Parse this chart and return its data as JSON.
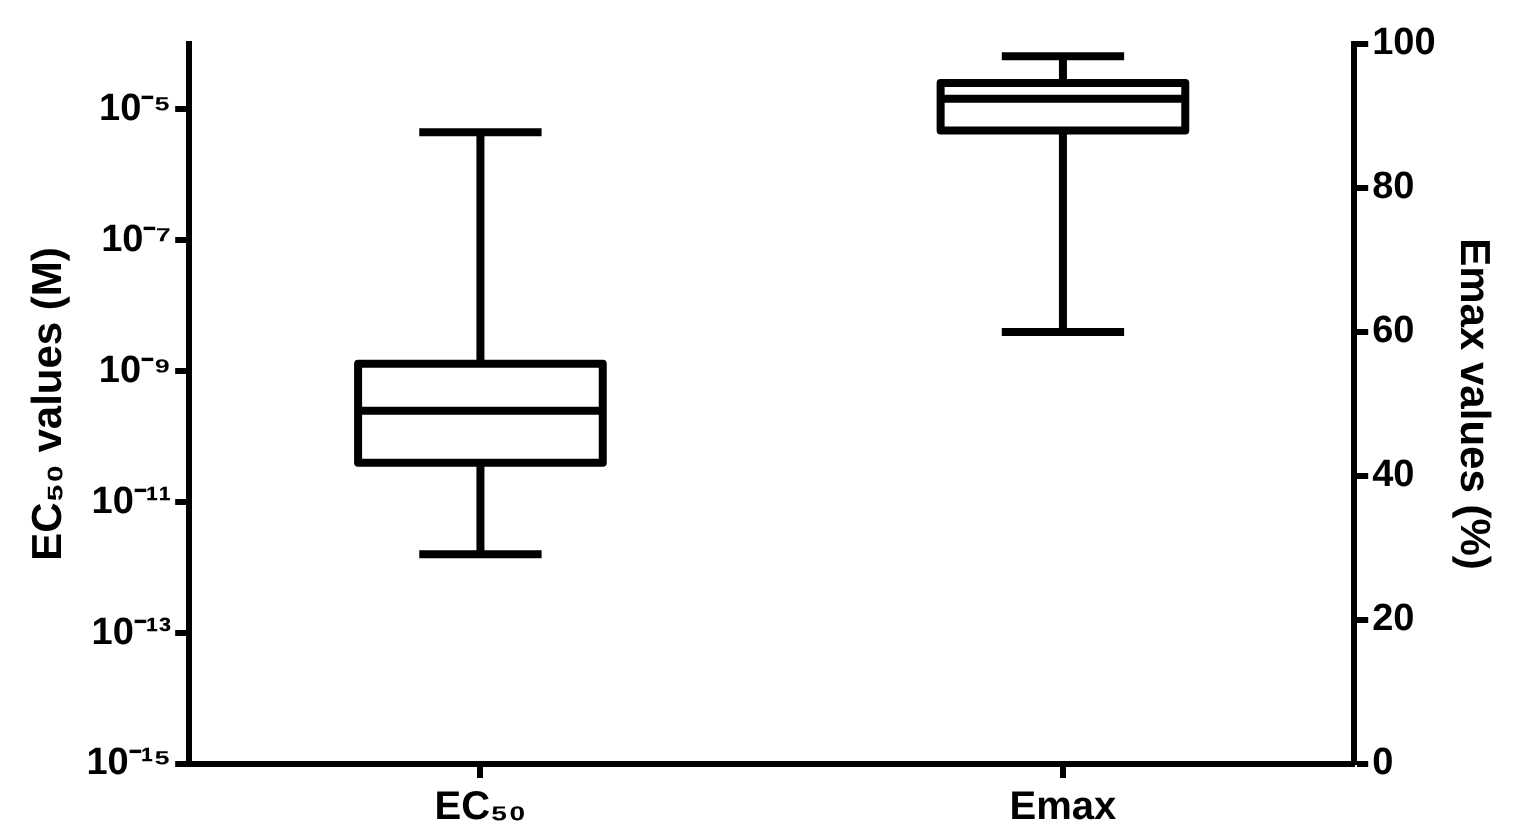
{
  "chart_data": {
    "type": "box",
    "categories": [
      "EC₅₀",
      "Emax"
    ],
    "ylabel": "EC₅₀ values (M)",
    "y2label": "Emax values (%)",
    "log": "y",
    "ylim": [
      1e-15,
      0.0001
    ],
    "yticks": [
      {
        "value": 1e-15,
        "label": "10⁻¹⁵"
      },
      {
        "value": 1e-13,
        "label": "10⁻¹³"
      },
      {
        "value": 1e-11,
        "label": "10⁻¹¹"
      },
      {
        "value": 1e-09,
        "label": "10⁻⁹"
      },
      {
        "value": 1e-07,
        "label": "10⁻⁷"
      },
      {
        "value": 1e-05,
        "label": "10⁻⁵"
      }
    ],
    "y2lim": [
      0,
      100
    ],
    "y2ticks": [
      0,
      20,
      40,
      60,
      80,
      100
    ],
    "grid": false,
    "legend": false,
    "series": [
      {
        "axis": "y",
        "color": "#000000",
        "boxes": [
          {
            "low": 1.6e-12,
            "q1": 4e-11,
            "median": 2.5e-10,
            "q3": 1.3e-09,
            "high": 4.5e-06
          },
          null
        ]
      },
      {
        "axis": "y2",
        "color": "#000000",
        "boxes": [
          null,
          {
            "low": 60,
            "q1": 88,
            "median": 92.4,
            "q3": 94.6,
            "high": 98.3
          }
        ]
      }
    ]
  }
}
